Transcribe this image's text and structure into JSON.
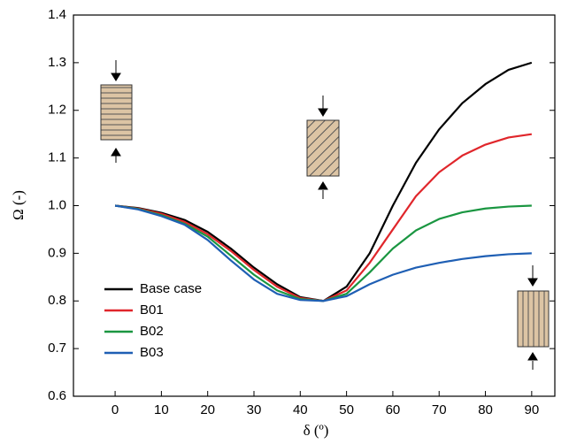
{
  "chart_data": {
    "type": "line",
    "x_label": "δ (º)",
    "y_label": "Ω (-)",
    "x": [
      0,
      5,
      10,
      15,
      20,
      25,
      30,
      35,
      40,
      45,
      50,
      55,
      60,
      65,
      70,
      75,
      80,
      85,
      90
    ],
    "series": [
      {
        "name": "Base case",
        "color": "#000000",
        "values": [
          1.0,
          0.995,
          0.985,
          0.97,
          0.945,
          0.91,
          0.87,
          0.835,
          0.808,
          0.8,
          0.83,
          0.9,
          1.0,
          1.09,
          1.16,
          1.215,
          1.255,
          1.285,
          1.3
        ]
      },
      {
        "name": "B01",
        "color": "#e0262b",
        "values": [
          1.0,
          0.994,
          0.983,
          0.966,
          0.94,
          0.905,
          0.865,
          0.83,
          0.806,
          0.8,
          0.822,
          0.88,
          0.95,
          1.02,
          1.07,
          1.105,
          1.128,
          1.143,
          1.15
        ]
      },
      {
        "name": "B02",
        "color": "#1a9641",
        "values": [
          1.0,
          0.993,
          0.98,
          0.962,
          0.935,
          0.895,
          0.855,
          0.822,
          0.804,
          0.8,
          0.815,
          0.86,
          0.91,
          0.948,
          0.972,
          0.986,
          0.994,
          0.998,
          1.0
        ]
      },
      {
        "name": "B03",
        "color": "#1f5fb4",
        "values": [
          1.0,
          0.992,
          0.978,
          0.96,
          0.928,
          0.885,
          0.845,
          0.815,
          0.802,
          0.8,
          0.81,
          0.835,
          0.855,
          0.87,
          0.88,
          0.888,
          0.894,
          0.898,
          0.9
        ]
      }
    ],
    "xlim": [
      -9,
      95
    ],
    "xticks": [
      0,
      10,
      20,
      30,
      40,
      50,
      60,
      70,
      80,
      90
    ],
    "ylim": [
      0.6,
      1.4
    ],
    "yticks": [
      0.6,
      0.7,
      0.8,
      0.9,
      {
        "value": 1,
        "label": "1.0"
      },
      1.1,
      1.2,
      1.3,
      1.4
    ],
    "legend": "lower left"
  }
}
